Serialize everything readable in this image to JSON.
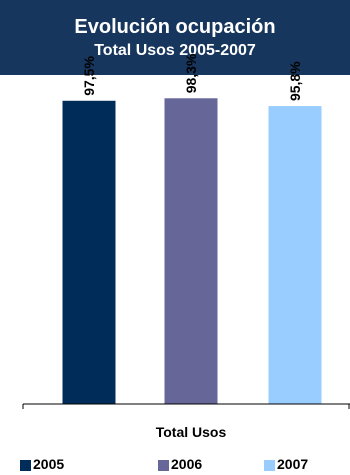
{
  "chart_data": {
    "type": "bar",
    "title": "Evolución ocupación",
    "subtitle": "Total Usos 2005-2007",
    "xlabel": "Total Usos",
    "ylabel": "",
    "categories": [
      "Total Usos"
    ],
    "series": [
      {
        "name": "2005",
        "values": [
          97.5
        ],
        "label": "97,5%",
        "color": "#002c5a"
      },
      {
        "name": "2006",
        "values": [
          98.3
        ],
        "label": "98,3%",
        "color": "#666699"
      },
      {
        "name": "2007",
        "values": [
          95.8
        ],
        "label": "95,8%",
        "color": "#99ccff"
      }
    ],
    "ylim": [
      0,
      100
    ],
    "grid": false,
    "legend": "bottom"
  },
  "colors": {
    "header_bg": "#17365d",
    "axis": "#000000"
  }
}
